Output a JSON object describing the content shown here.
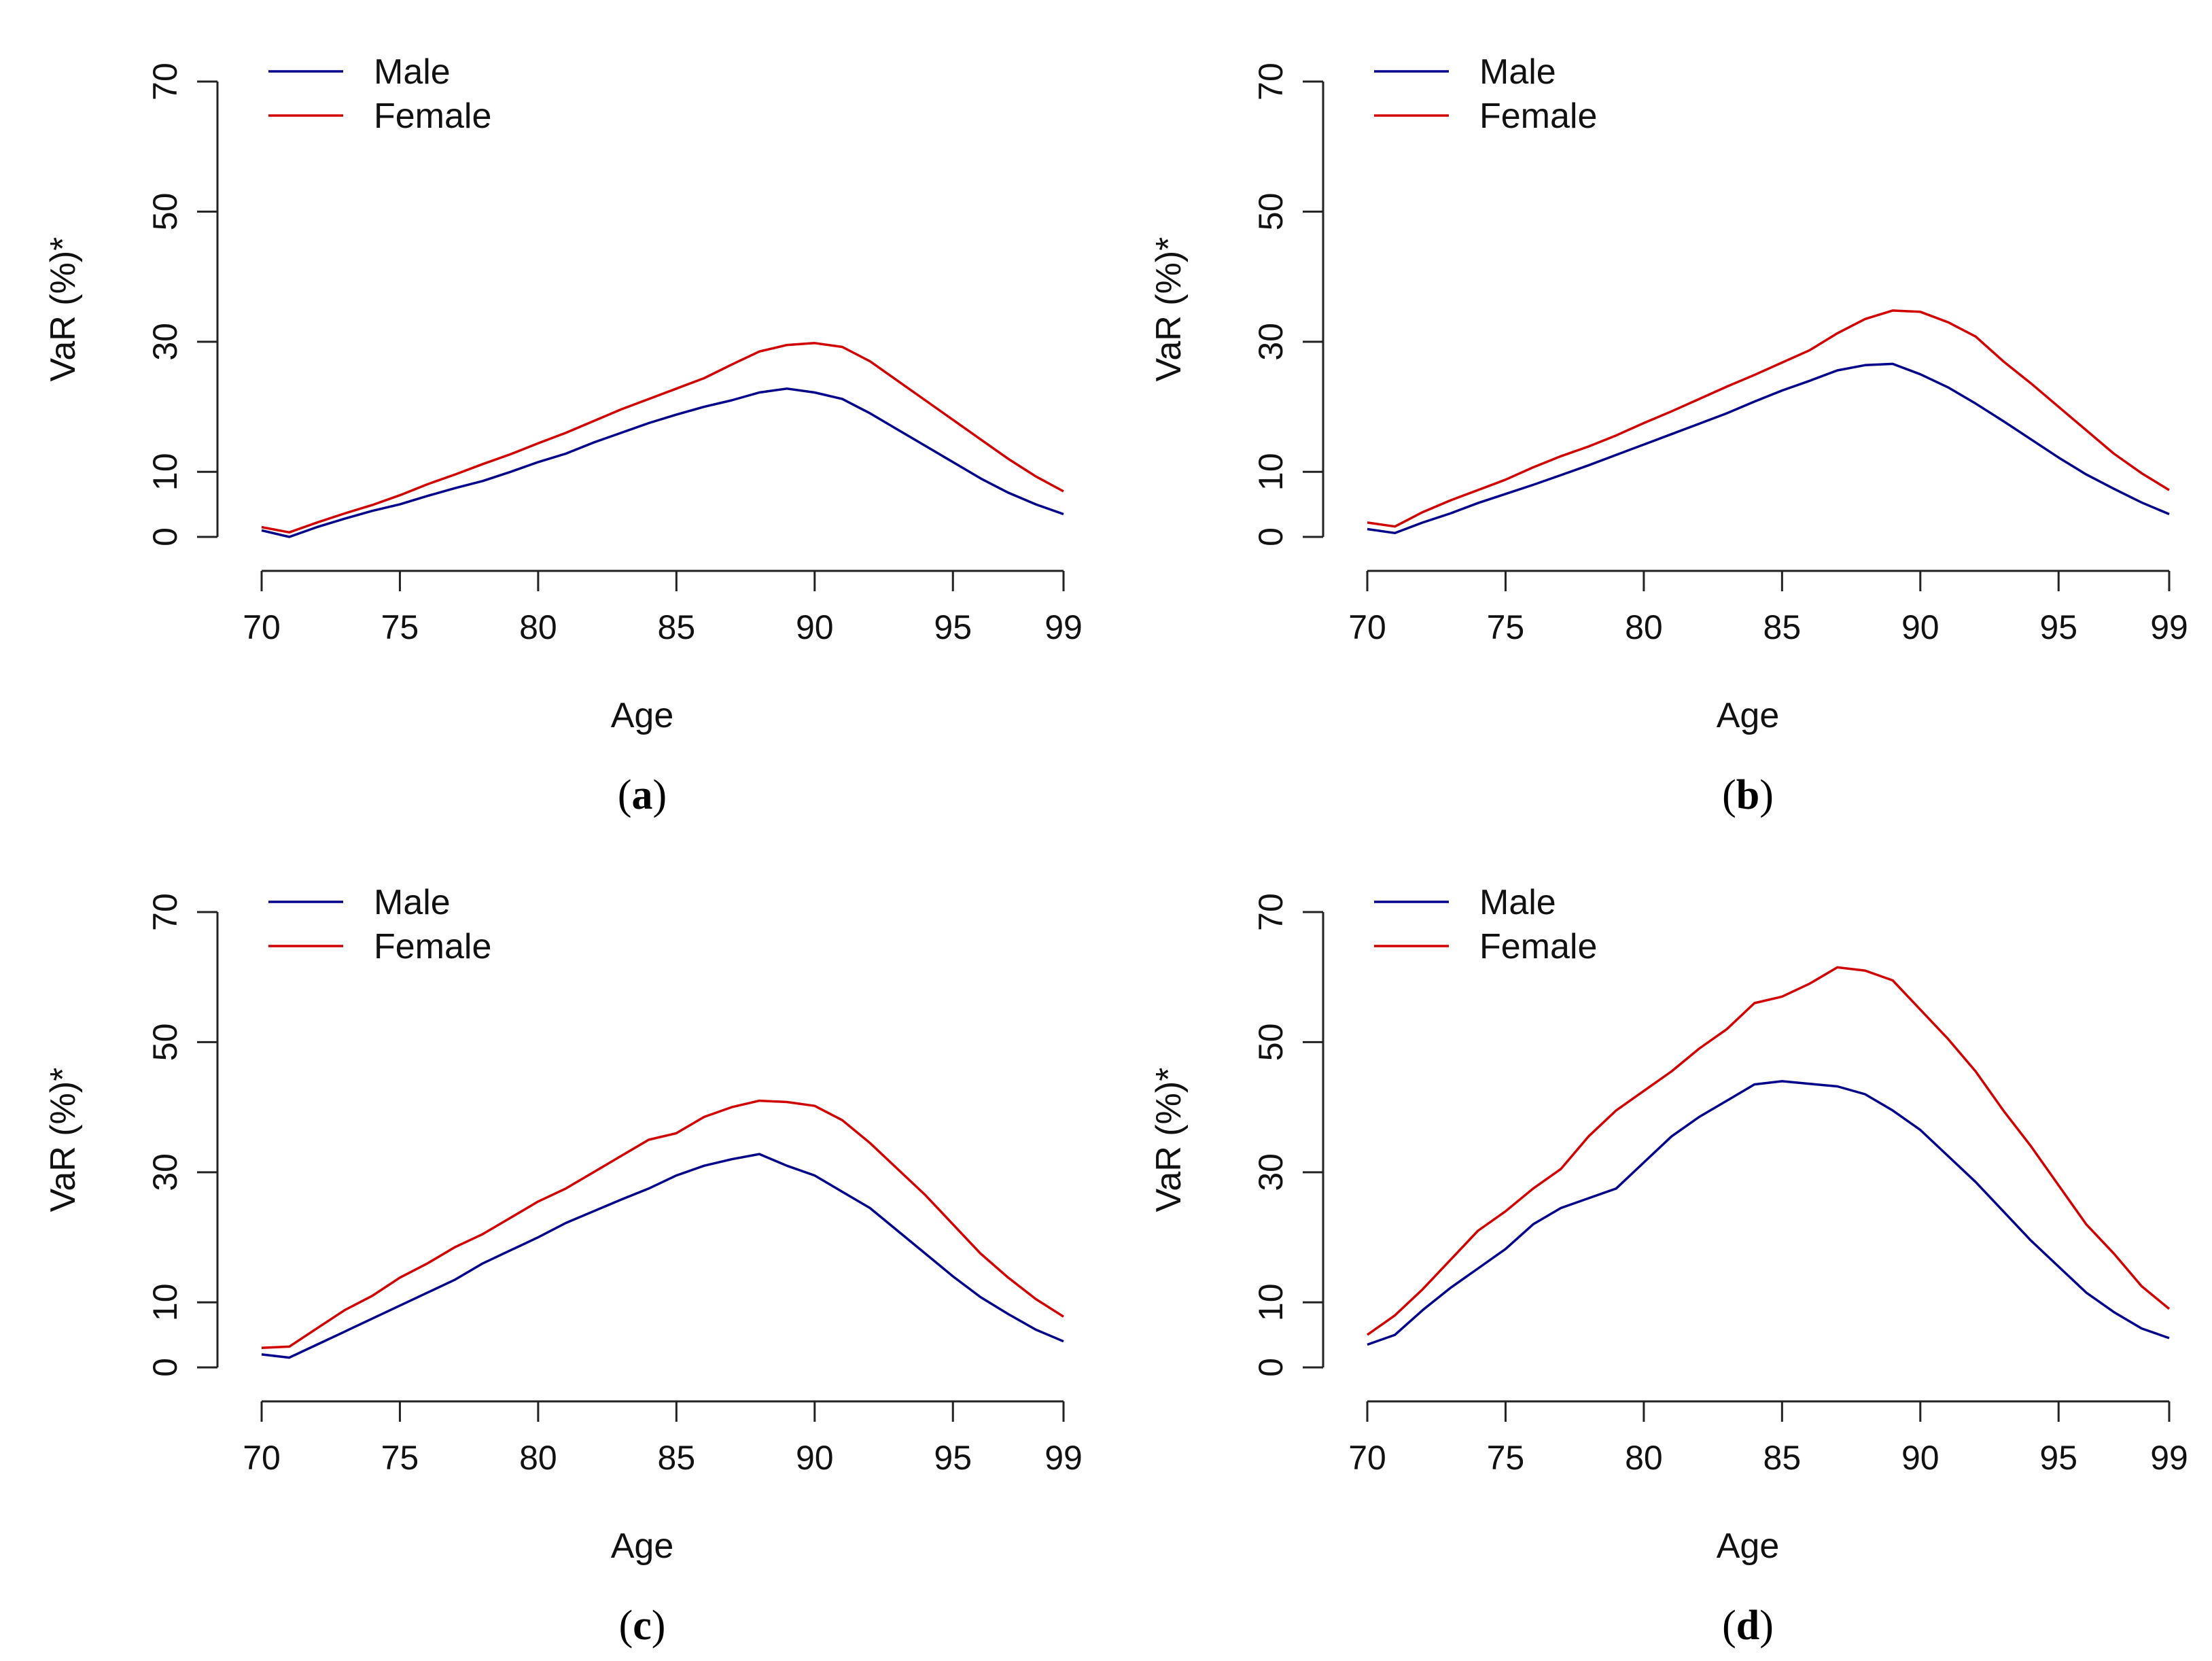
{
  "figure": {
    "series_colors": {
      "Male": "#00008b",
      "Female": "#d00000"
    }
  },
  "chart_data": [
    {
      "panel": "a",
      "type": "line",
      "caption_open": "(",
      "caption_letter": "a",
      "caption_close": ")",
      "xlabel": "Age",
      "ylabel": "VaR (%)*",
      "x_ticks": [
        70,
        75,
        80,
        85,
        90,
        95,
        99
      ],
      "y_ticks": [
        0,
        10,
        30,
        50,
        70
      ],
      "xlim": [
        70,
        99
      ],
      "ylim": [
        0,
        70
      ],
      "legend": [
        "Male",
        "Female"
      ],
      "x": [
        70,
        71,
        72,
        73,
        74,
        75,
        76,
        77,
        78,
        79,
        80,
        81,
        82,
        83,
        84,
        85,
        86,
        87,
        88,
        89,
        90,
        91,
        92,
        93,
        94,
        95,
        96,
        97,
        98,
        99
      ],
      "series": [
        {
          "name": "Male",
          "values": [
            1.0,
            0.0,
            1.5,
            2.8,
            4.0,
            5.0,
            6.3,
            7.5,
            8.6,
            10.0,
            11.5,
            12.8,
            14.5,
            16.0,
            17.5,
            18.8,
            20.0,
            21.0,
            22.2,
            22.8,
            22.2,
            21.2,
            19.0,
            16.5,
            14.0,
            11.5,
            9.0,
            6.8,
            5.0,
            3.5
          ]
        },
        {
          "name": "Female",
          "values": [
            1.5,
            0.7,
            2.2,
            3.6,
            4.9,
            6.4,
            8.1,
            9.6,
            11.2,
            12.7,
            14.4,
            16.0,
            17.8,
            19.6,
            21.2,
            22.8,
            24.4,
            26.5,
            28.5,
            29.5,
            29.8,
            29.2,
            27.0,
            24.0,
            21.0,
            18.0,
            15.0,
            12.0,
            9.3,
            7.0
          ]
        }
      ]
    },
    {
      "panel": "b",
      "type": "line",
      "caption_open": "(",
      "caption_letter": "b",
      "caption_close": ")",
      "xlabel": "Age",
      "ylabel": "VaR (%)*",
      "x_ticks": [
        70,
        75,
        80,
        85,
        90,
        95,
        99
      ],
      "y_ticks": [
        0,
        10,
        30,
        50,
        70
      ],
      "xlim": [
        70,
        99
      ],
      "ylim": [
        0,
        70
      ],
      "legend": [
        "Male",
        "Female"
      ],
      "x": [
        70,
        71,
        72,
        73,
        74,
        75,
        76,
        77,
        78,
        79,
        80,
        81,
        82,
        83,
        84,
        85,
        86,
        87,
        88,
        89,
        90,
        91,
        92,
        93,
        94,
        95,
        96,
        97,
        98,
        99
      ],
      "series": [
        {
          "name": "Male",
          "values": [
            1.2,
            0.6,
            2.2,
            3.6,
            5.2,
            6.6,
            8.0,
            9.5,
            11.0,
            12.6,
            14.2,
            15.8,
            17.4,
            19.0,
            20.8,
            22.5,
            24.0,
            25.6,
            26.4,
            26.6,
            25.0,
            23.0,
            20.5,
            17.8,
            15.0,
            12.2,
            9.6,
            7.4,
            5.3,
            3.5
          ]
        },
        {
          "name": "Female",
          "values": [
            2.2,
            1.6,
            3.8,
            5.6,
            7.2,
            8.8,
            10.7,
            12.4,
            13.9,
            15.6,
            17.5,
            19.3,
            21.2,
            23.1,
            24.9,
            26.8,
            28.7,
            31.3,
            33.5,
            34.8,
            34.6,
            33.0,
            30.8,
            27.0,
            23.6,
            20.0,
            16.4,
            12.8,
            9.8,
            7.2
          ]
        }
      ]
    },
    {
      "panel": "c",
      "type": "line",
      "caption_open": "(",
      "caption_letter": "c",
      "caption_close": ")",
      "xlabel": "Age",
      "ylabel": "VaR (%)*",
      "x_ticks": [
        70,
        75,
        80,
        85,
        90,
        95,
        99
      ],
      "y_ticks": [
        0,
        10,
        30,
        50,
        70
      ],
      "xlim": [
        70,
        99
      ],
      "ylim": [
        0,
        70
      ],
      "legend": [
        "Male",
        "Female"
      ],
      "x": [
        70,
        71,
        72,
        73,
        74,
        75,
        76,
        77,
        78,
        79,
        80,
        81,
        82,
        83,
        84,
        85,
        86,
        87,
        88,
        89,
        90,
        91,
        92,
        93,
        94,
        95,
        96,
        97,
        98,
        99
      ],
      "series": [
        {
          "name": "Male",
          "values": [
            2.0,
            1.5,
            3.5,
            5.5,
            7.5,
            9.5,
            11.5,
            13.5,
            16.0,
            18.0,
            20.0,
            22.2,
            24.0,
            25.8,
            27.5,
            29.5,
            31.0,
            32.0,
            32.8,
            31.0,
            29.5,
            27.0,
            24.5,
            21.0,
            17.5,
            14.0,
            10.8,
            8.2,
            5.8,
            4.0
          ]
        },
        {
          "name": "Female",
          "values": [
            3.0,
            3.2,
            6.0,
            8.8,
            11.0,
            13.8,
            16.0,
            18.5,
            20.5,
            23.0,
            25.5,
            27.5,
            30.0,
            32.5,
            35.0,
            36.0,
            38.5,
            40.0,
            41.0,
            40.8,
            40.2,
            38.0,
            34.5,
            30.5,
            26.5,
            22.0,
            17.5,
            13.8,
            10.5,
            7.8
          ]
        }
      ]
    },
    {
      "panel": "d",
      "type": "line",
      "caption_open": "(",
      "caption_letter": "d",
      "caption_close": ")",
      "xlabel": "Age",
      "ylabel": "VaR (%)*",
      "x_ticks": [
        70,
        75,
        80,
        85,
        90,
        95,
        99
      ],
      "y_ticks": [
        0,
        10,
        30,
        50,
        70
      ],
      "xlim": [
        70,
        99
      ],
      "ylim": [
        0,
        70
      ],
      "legend": [
        "Male",
        "Female"
      ],
      "x": [
        70,
        71,
        72,
        73,
        74,
        75,
        76,
        77,
        78,
        79,
        80,
        81,
        82,
        83,
        84,
        85,
        86,
        87,
        88,
        89,
        90,
        91,
        92,
        93,
        94,
        95,
        96,
        97,
        98,
        99
      ],
      "series": [
        {
          "name": "Male",
          "values": [
            3.5,
            5.0,
            8.8,
            12.2,
            15.2,
            18.2,
            22.0,
            24.5,
            26.0,
            27.5,
            31.5,
            35.5,
            38.5,
            41.0,
            43.5,
            44.0,
            43.6,
            43.2,
            42.0,
            39.5,
            36.5,
            32.5,
            28.5,
            24.0,
            19.5,
            15.5,
            11.5,
            8.5,
            6.0,
            4.5
          ]
        },
        {
          "name": "Female",
          "values": [
            5.0,
            8.0,
            12.0,
            16.5,
            21.0,
            24.0,
            27.5,
            30.5,
            35.5,
            39.5,
            42.5,
            45.5,
            49.0,
            52.0,
            56.0,
            57.0,
            59.0,
            61.5,
            61.0,
            59.5,
            55.0,
            50.5,
            45.5,
            39.5,
            34.0,
            28.0,
            22.0,
            17.5,
            12.5,
            9.0
          ]
        }
      ]
    }
  ]
}
